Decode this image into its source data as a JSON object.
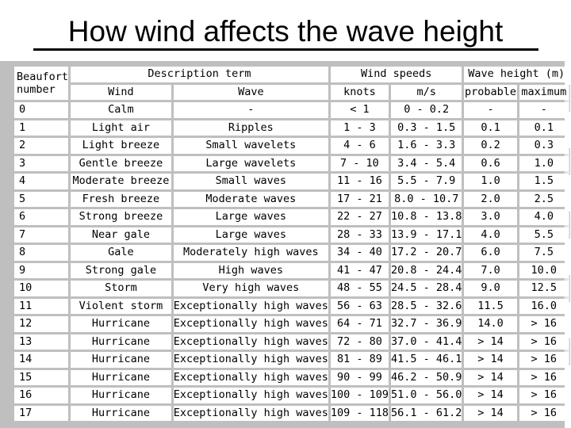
{
  "title": "How wind affects the wave height",
  "headers": {
    "beaufort_line1": "Beaufort",
    "beaufort_line2": "number",
    "description_group": "Description term",
    "speeds_group": "Wind speeds",
    "height_group": "Wave height (m)",
    "wind": "Wind",
    "wave": "Wave",
    "knots": "knots",
    "ms": "m/s",
    "probable": "probable",
    "maximum": "maximum"
  },
  "rows": [
    [
      "0",
      "Calm",
      "-",
      "< 1",
      "0 - 0.2",
      "-",
      "-"
    ],
    [
      "1",
      "Light air",
      "Ripples",
      "1 - 3",
      "0.3 - 1.5",
      "0.1",
      "0.1"
    ],
    [
      "2",
      "Light breeze",
      "Small wavelets",
      "4 - 6",
      "1.6 - 3.3",
      "0.2",
      "0.3"
    ],
    [
      "3",
      "Gentle breeze",
      "Large wavelets",
      "7 - 10",
      "3.4 - 5.4",
      "0.6",
      "1.0"
    ],
    [
      "4",
      "Moderate breeze",
      "Small waves",
      "11 - 16",
      "5.5 - 7.9",
      "1.0",
      "1.5"
    ],
    [
      "5",
      "Fresh breeze",
      "Moderate waves",
      "17 - 21",
      "8.0 - 10.7",
      "2.0",
      "2.5"
    ],
    [
      "6",
      "Strong breeze",
      "Large waves",
      "22 - 27",
      "10.8 - 13.8",
      "3.0",
      "4.0"
    ],
    [
      "7",
      "Near gale",
      "Large waves",
      "28 - 33",
      "13.9 - 17.1",
      "4.0",
      "5.5"
    ],
    [
      "8",
      "Gale",
      "Moderately high waves",
      "34 - 40",
      "17.2 - 20.7",
      "6.0",
      "7.5"
    ],
    [
      "9",
      "Strong gale",
      "High waves",
      "41 - 47",
      "20.8 - 24.4",
      "7.0",
      "10.0"
    ],
    [
      "10",
      "Storm",
      "Very high waves",
      "48 - 55",
      "24.5 - 28.4",
      "9.0",
      "12.5"
    ],
    [
      "11",
      "Violent storm",
      "Exceptionally high waves",
      "56 - 63",
      "28.5 - 32.6",
      "11.5",
      "16.0"
    ],
    [
      "12",
      "Hurricane",
      "Exceptionally high waves",
      "64 - 71",
      "32.7 - 36.9",
      "14.0",
      "> 16"
    ],
    [
      "13",
      "Hurricane",
      "Exceptionally high waves",
      "72 - 80",
      "37.0 - 41.4",
      "> 14",
      "> 16"
    ],
    [
      "14",
      "Hurricane",
      "Exceptionally high waves",
      "81 - 89",
      "41.5 - 46.1",
      "> 14",
      "> 16"
    ],
    [
      "15",
      "Hurricane",
      "Exceptionally high waves",
      "90 - 99",
      "46.2 - 50.9",
      "> 14",
      "> 16"
    ],
    [
      "16",
      "Hurricane",
      "Exceptionally high waves",
      "100 - 109",
      "51.0 - 56.0",
      "> 14",
      "> 16"
    ],
    [
      "17",
      "Hurricane",
      "Exceptionally high waves",
      "109 - 118",
      "56.1 - 61.2",
      "> 14",
      "> 16"
    ]
  ],
  "colors": {
    "grid_background": "#bfbfbf",
    "cell_background": "#ffffff",
    "text": "#000000"
  }
}
